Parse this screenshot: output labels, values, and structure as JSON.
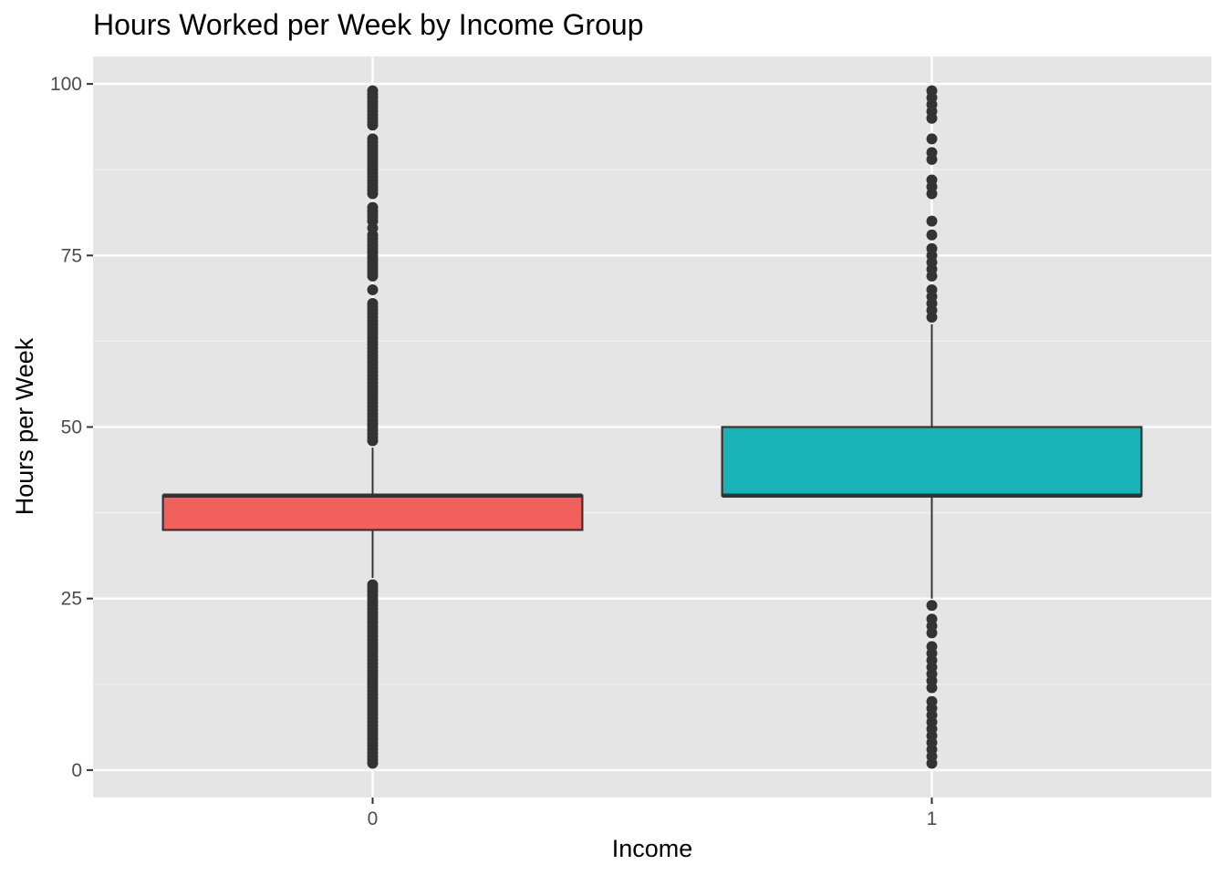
{
  "chart_data": {
    "type": "boxplot",
    "title": "Hours Worked per Week by Income Group",
    "xlabel": "Income",
    "ylabel": "Hours per Week",
    "ylim": [
      -4,
      104
    ],
    "yticks": [
      0,
      25,
      50,
      75,
      100
    ],
    "grid": true,
    "legend": "none",
    "categories": [
      "0",
      "1"
    ],
    "series": [
      {
        "category": "0",
        "fill": "#F2605C",
        "whisker_low": 28,
        "q1": 35,
        "median": 40,
        "q3": 40,
        "whisker_high": 47,
        "outliers": [
          1,
          1.5,
          2,
          2.5,
          3,
          3.5,
          4,
          4.5,
          5,
          5.5,
          6,
          6.5,
          7,
          7.5,
          8,
          8.5,
          9,
          9.5,
          10,
          10.5,
          11,
          11.5,
          12,
          12.5,
          13,
          13.5,
          14,
          14.5,
          15,
          15.5,
          16,
          16.5,
          17,
          17.5,
          18,
          18.5,
          19,
          19.5,
          20,
          20.5,
          21,
          21.5,
          22,
          22.5,
          23,
          23.5,
          24,
          24.5,
          25,
          25.5,
          26,
          26.5,
          27,
          48,
          48.5,
          49,
          49.5,
          50,
          50.5,
          51,
          51.5,
          52,
          52.5,
          53,
          53.5,
          54,
          54.5,
          55,
          55.5,
          56,
          56.5,
          57,
          57.5,
          58,
          58.5,
          59,
          59.5,
          60,
          60.5,
          61,
          61.5,
          62,
          62.5,
          63,
          63.5,
          64,
          64.5,
          65,
          65.5,
          66,
          66.5,
          67,
          67.5,
          68,
          70,
          72,
          72.5,
          73,
          73.5,
          74,
          74.5,
          75,
          75.5,
          76,
          76.5,
          77,
          77.5,
          78,
          79,
          80,
          80.5,
          81,
          81.5,
          82,
          84,
          84.5,
          85,
          85.5,
          86,
          86.5,
          87,
          87.5,
          88,
          88.5,
          89,
          89.5,
          90,
          90.5,
          91,
          91.5,
          92,
          94,
          94.5,
          95,
          95.5,
          96,
          96.5,
          97,
          97.5,
          98,
          98.5,
          99
        ]
      },
      {
        "category": "1",
        "fill": "#19B2B7",
        "whisker_low": 25,
        "q1": 40,
        "median": 40,
        "q3": 50,
        "whisker_high": 65,
        "outliers": [
          1,
          2,
          3,
          4,
          5,
          6,
          7,
          8,
          9,
          10,
          12,
          13,
          14,
          15,
          16,
          17,
          18,
          20,
          21,
          22,
          24,
          66,
          67,
          68,
          69,
          70,
          72,
          73,
          74,
          75,
          76,
          78,
          80,
          84,
          85,
          86,
          89,
          90,
          92,
          95,
          96,
          97,
          98,
          99
        ]
      }
    ]
  }
}
